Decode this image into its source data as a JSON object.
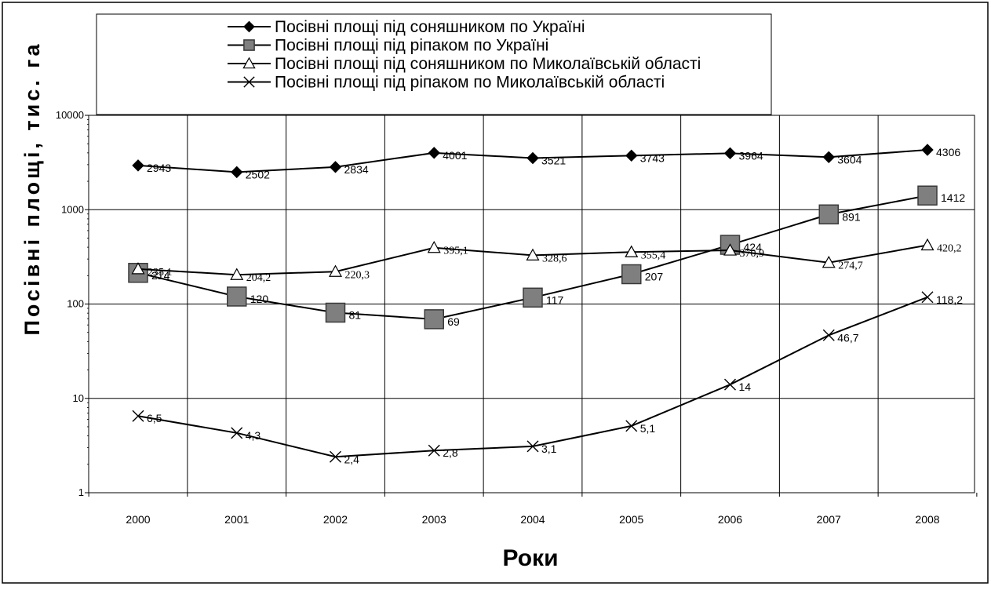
{
  "chart_data": {
    "type": "line",
    "y_scale": "log",
    "ylim": [
      1,
      10000
    ],
    "yticks": [
      "1",
      "10",
      "100",
      "1000",
      "10000"
    ],
    "categories": [
      "2000",
      "2001",
      "2002",
      "2003",
      "2004",
      "2005",
      "2006",
      "2007",
      "2008"
    ],
    "xlabel": "Роки",
    "ylabel": "Посівні площі, тис. га",
    "grid": true,
    "legend_position": "top",
    "series": [
      {
        "name": "Посівні площі під соняшником по Україні",
        "marker": "diamond",
        "values": [
          2943,
          2502,
          2834,
          4001,
          3521,
          3743,
          3964,
          3604,
          4306
        ],
        "labels": [
          "2943",
          "2502",
          "2834",
          "4001",
          "3521",
          "3743",
          "3964",
          "3604",
          "4306"
        ]
      },
      {
        "name": "Посівні площі під ріпаком по Україні",
        "marker": "square",
        "values": [
          214,
          120,
          81,
          69,
          117,
          207,
          424,
          891,
          1412
        ],
        "labels": [
          "214",
          "120",
          "81",
          "69",
          "117",
          "207",
          "424",
          "891",
          "1412"
        ]
      },
      {
        "name": "Посівні площі під соняшником по Миколаївській області",
        "marker": "triangle",
        "values": [
          235.1,
          204.2,
          220.3,
          395.1,
          328.6,
          355.4,
          370.9,
          274.7,
          420.2
        ],
        "labels": [
          "235,1",
          "204,2",
          "220,3",
          "395,1",
          "328,6",
          "355,4",
          "370,9",
          "274,7",
          "420,2"
        ]
      },
      {
        "name": "Посівні площі під ріпаком по Миколаївській області",
        "marker": "x",
        "values": [
          6.5,
          4.3,
          2.4,
          2.8,
          3.1,
          5.1,
          14,
          46.7,
          118.2
        ],
        "labels": [
          "6,5",
          "4,3",
          "2,4",
          "2,8",
          "3,1",
          "5,1",
          "14",
          "46,7",
          "118,2"
        ]
      }
    ]
  }
}
